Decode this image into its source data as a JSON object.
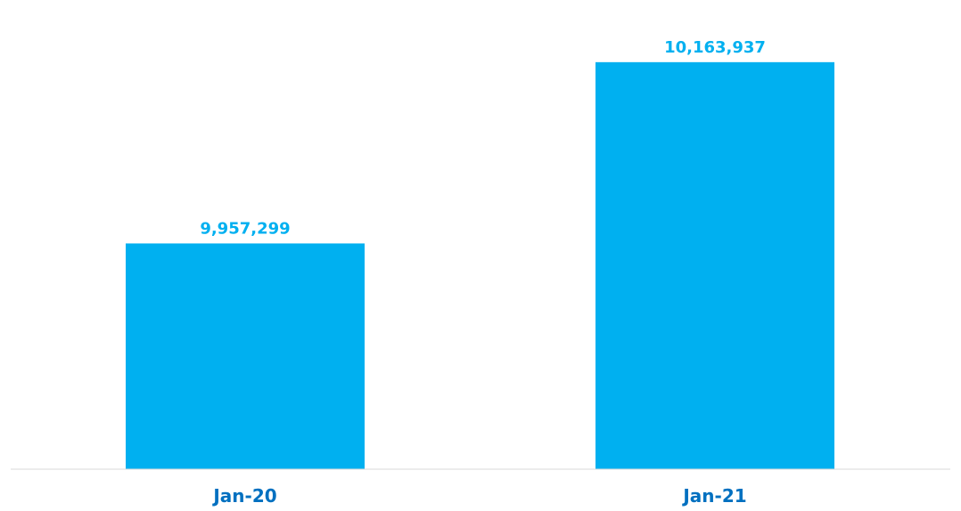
{
  "chart_data": {
    "type": "bar",
    "categories": [
      "Jan-20",
      "Jan-21"
    ],
    "values": [
      9957299,
      10163937
    ],
    "value_labels": [
      "9,957,299",
      "10,163,937"
    ],
    "title": "",
    "xlabel": "",
    "ylabel": "",
    "ylim": [
      9700000,
      10180000
    ],
    "grid": false,
    "legend": "none",
    "colors": {
      "bar": "#00b0f0",
      "value_label": "#00b0f0",
      "category_label": "#0070c0",
      "axis_line": "#d9d9d9"
    }
  }
}
